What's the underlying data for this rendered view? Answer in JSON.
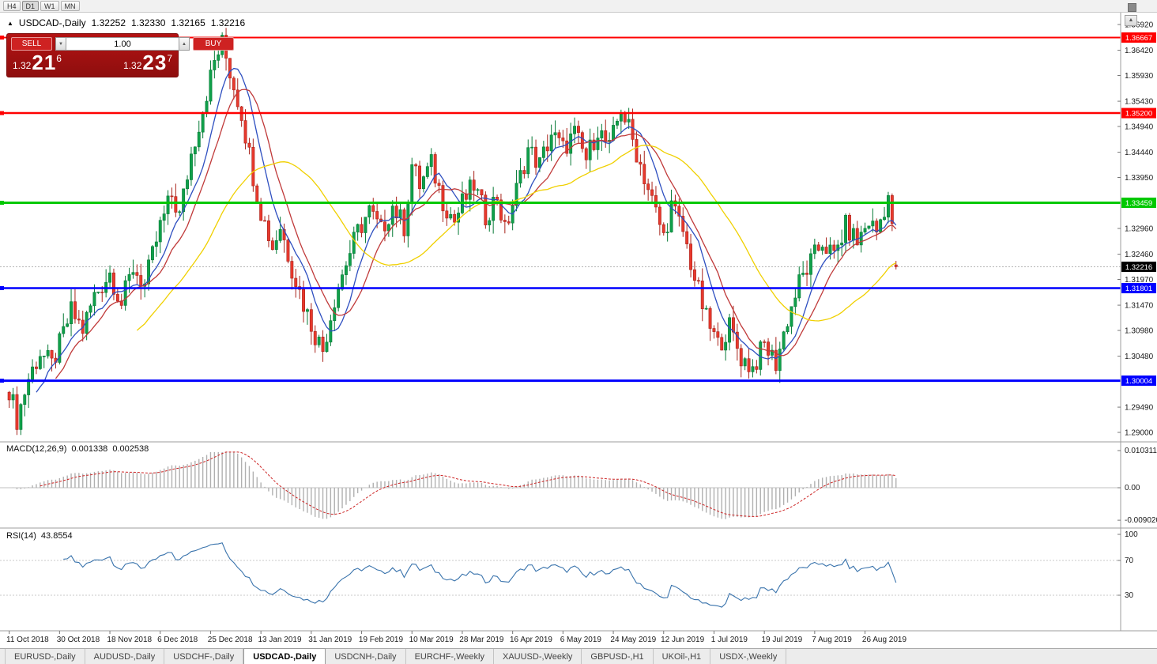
{
  "toolbar": {
    "timeframes": [
      "H4",
      "D1",
      "W1",
      "MN"
    ],
    "active": "D1"
  },
  "icons": {
    "title_marker": "▲",
    "volume_up": "▲",
    "volume_down": "▼",
    "chart_scroll": "▲"
  },
  "chart": {
    "symbol_label": "USDCAD-,Daily",
    "open": "1.32252",
    "high": "1.32330",
    "low": "1.32165",
    "close": "1.32216"
  },
  "trade_panel": {
    "sell_label": "SELL",
    "buy_label": "BUY",
    "volume": "1.00",
    "sell_price": {
      "prefix": "1.32",
      "big": "21",
      "sup": "6"
    },
    "buy_price": {
      "prefix": "1.32",
      "big": "23",
      "sup": "7"
    }
  },
  "macd": {
    "name": "MACD(12,26,9)",
    "value1": "0.001338",
    "value2": "0.002538",
    "axis_ticks": [
      "0.010311",
      "0.00",
      "-0.0090203"
    ]
  },
  "rsi": {
    "name": "RSI(14)",
    "value": "43.8554",
    "axis_ticks": [
      "100",
      "70",
      "30"
    ],
    "levels": [
      70,
      30
    ]
  },
  "price_axis": {
    "ticks": [
      "1.36920",
      "1.36420",
      "1.35930",
      "1.35430",
      "1.34940",
      "1.34440",
      "1.33950",
      "1.32960",
      "1.32460",
      "1.31970",
      "1.31470",
      "1.30980",
      "1.30480",
      "1.29490",
      "1.29000"
    ],
    "tags": [
      {
        "text": "1.36667",
        "price": 1.36667,
        "color": "#ff0000"
      },
      {
        "text": "1.35200",
        "price": 1.352,
        "color": "#ff0000"
      },
      {
        "text": "1.33459",
        "price": 1.33459,
        "color": "#00c800"
      },
      {
        "text": "1.31801",
        "price": 1.31801,
        "color": "#0000ff"
      },
      {
        "text": "1.30004",
        "price": 1.30004,
        "color": "#0000ff"
      },
      {
        "text": "1.32216",
        "price": 1.32216,
        "color": "#000000"
      }
    ]
  },
  "date_axis": {
    "labels": [
      "11 Oct 2018",
      "30 Oct 2018",
      "18 Nov 2018",
      "6 Dec 2018",
      "25 Dec 2018",
      "13 Jan 2019",
      "31 Jan 2019",
      "19 Feb 2019",
      "10 Mar 2019",
      "28 Mar 2019",
      "16 Apr 2019",
      "6 May 2019",
      "24 May 2019",
      "12 Jun 2019",
      "1 Jul 2019",
      "19 Jul 2019",
      "7 Aug 2019",
      "26 Aug 2019"
    ]
  },
  "tabs": {
    "items": [
      "EURUSD-,Daily",
      "AUDUSD-,Daily",
      "USDCHF-,Daily",
      "USDCAD-,Daily",
      "USDCNH-,Daily",
      "EURCHF-,Weekly",
      "XAUUSD-,Weekly",
      "GBPUSD-,H1",
      "UKOil-,H1",
      "USDX-,Weekly"
    ],
    "active_index": 3
  },
  "colors": {
    "bull": "#10a04a",
    "bull_border": "#067a36",
    "bear": "#e8392d",
    "bear_border": "#a8221a"
  },
  "chart_data": {
    "type": "candlestick",
    "symbol": "USDCAD",
    "timeframe": "Daily",
    "bars": 230,
    "price_range": [
      1.29,
      1.3692
    ],
    "last_candle": {
      "open": 1.32252,
      "high": 1.3233,
      "low": 1.32165,
      "close": 1.32216
    },
    "price_anchors": [
      [
        0,
        1.2985
      ],
      [
        2,
        1.2925
      ],
      [
        5,
        1.3005
      ],
      [
        8,
        1.3055
      ],
      [
        11,
        1.303
      ],
      [
        13,
        1.307
      ],
      [
        16,
        1.3135
      ],
      [
        19,
        1.31
      ],
      [
        22,
        1.3165
      ],
      [
        26,
        1.321
      ],
      [
        29,
        1.315
      ],
      [
        32,
        1.322
      ],
      [
        35,
        1.3185
      ],
      [
        39,
        1.33
      ],
      [
        42,
        1.336
      ],
      [
        44,
        1.332
      ],
      [
        47,
        1.344
      ],
      [
        50,
        1.353
      ],
      [
        53,
        1.362
      ],
      [
        55,
        1.3655
      ],
      [
        57,
        1.36
      ],
      [
        60,
        1.352
      ],
      [
        63,
        1.34
      ],
      [
        65,
        1.333
      ],
      [
        68,
        1.326
      ],
      [
        70,
        1.33
      ],
      [
        73,
        1.322
      ],
      [
        76,
        1.315
      ],
      [
        79,
        1.309
      ],
      [
        81,
        1.306
      ],
      [
        84,
        1.316
      ],
      [
        87,
        1.323
      ],
      [
        90,
        1.329
      ],
      [
        93,
        1.333
      ],
      [
        96,
        1.329
      ],
      [
        99,
        1.334
      ],
      [
        102,
        1.33
      ],
      [
        104,
        1.342
      ],
      [
        106,
        1.338
      ],
      [
        109,
        1.342
      ],
      [
        112,
        1.335
      ],
      [
        115,
        1.331
      ],
      [
        117,
        1.3345
      ],
      [
        120,
        1.338
      ],
      [
        123,
        1.332
      ],
      [
        126,
        1.336
      ],
      [
        128,
        1.329
      ],
      [
        131,
        1.337
      ],
      [
        134,
        1.345
      ],
      [
        137,
        1.342
      ],
      [
        140,
        1.348
      ],
      [
        143,
        1.345
      ],
      [
        146,
        1.348
      ],
      [
        149,
        1.343
      ],
      [
        152,
        1.349
      ],
      [
        155,
        1.345
      ],
      [
        158,
        1.353
      ],
      [
        160,
        1.349
      ],
      [
        163,
        1.342
      ],
      [
        166,
        1.335
      ],
      [
        169,
        1.328
      ],
      [
        171,
        1.334
      ],
      [
        174,
        1.329
      ],
      [
        177,
        1.32
      ],
      [
        180,
        1.312
      ],
      [
        183,
        1.307
      ],
      [
        186,
        1.3105
      ],
      [
        189,
        1.3045
      ],
      [
        192,
        1.3025
      ],
      [
        195,
        1.307
      ],
      [
        198,
        1.3035
      ],
      [
        201,
        1.312
      ],
      [
        204,
        1.319
      ],
      [
        207,
        1.323
      ],
      [
        210,
        1.327
      ],
      [
        213,
        1.324
      ],
      [
        216,
        1.33
      ],
      [
        219,
        1.327
      ],
      [
        222,
        1.331
      ],
      [
        224,
        1.329
      ],
      [
        227,
        1.336
      ],
      [
        229,
        1.3222
      ]
    ],
    "levels": [
      {
        "price": 1.36667,
        "color": "#ff0000",
        "width": 2
      },
      {
        "price": 1.352,
        "color": "#ff0000",
        "width": 2.5
      },
      {
        "price": 1.33459,
        "color": "#00c800",
        "width": 3
      },
      {
        "price": 1.31801,
        "color": "#0000ff",
        "width": 2.5
      },
      {
        "price": 1.30004,
        "color": "#0000ff",
        "width": 3
      }
    ],
    "moving_averages": [
      {
        "period": 8,
        "color": "#2e4fc0"
      },
      {
        "period": 13,
        "color": "#c03a3a"
      },
      {
        "period": 34,
        "color": "#f0d000"
      }
    ],
    "indicators": [
      {
        "name": "MACD",
        "params": [
          12,
          26,
          9
        ],
        "current_values": [
          0.001338,
          0.002538
        ],
        "axis_range": [
          -0.0090203,
          0.010311
        ]
      },
      {
        "name": "RSI",
        "params": [
          14
        ],
        "current_value": 43.8554,
        "axis_range": [
          0,
          100
        ],
        "levels": [
          70,
          30
        ]
      }
    ]
  }
}
